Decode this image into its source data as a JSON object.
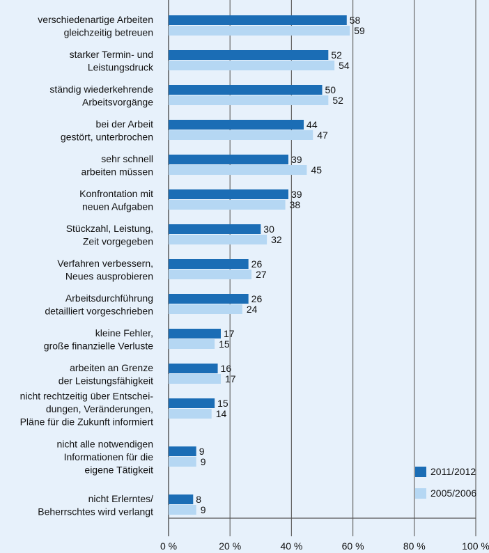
{
  "chart_data": {
    "type": "bar",
    "orientation": "horizontal",
    "categories": [
      [
        "verschiedenartige Arbeiten",
        "gleichzeitig betreuen"
      ],
      [
        "starker Termin- und",
        "Leistungsdruck"
      ],
      [
        "ständig wiederkehrende",
        "Arbeitsvorgänge"
      ],
      [
        "bei der Arbeit",
        "gestört, unterbrochen"
      ],
      [
        "sehr schnell",
        "arbeiten müssen"
      ],
      [
        "Konfrontation mit",
        "neuen Aufgaben"
      ],
      [
        "Stückzahl, Leistung,",
        "Zeit vorgegeben"
      ],
      [
        "Verfahren verbessern,",
        "Neues ausprobieren"
      ],
      [
        "Arbeitsdurchführung",
        "detailliert vorgeschrieben"
      ],
      [
        "kleine Fehler,",
        "große finanzielle Verluste"
      ],
      [
        "arbeiten an Grenze",
        "der Leistungsfähigkeit"
      ],
      [
        "nicht rechtzeitig über Entschei-",
        "dungen, Veränderungen,",
        "Pläne für die Zukunft informiert"
      ],
      [
        "nicht alle notwendigen",
        "Informationen für die",
        "eigene Tätigkeit"
      ],
      [
        "nicht Erlerntes/",
        "Beherrschtes wird verlangt"
      ]
    ],
    "series": [
      {
        "name": "2011/2012",
        "color": "#1b6db5",
        "values": [
          58,
          52,
          50,
          44,
          39,
          39,
          30,
          26,
          26,
          17,
          16,
          15,
          9,
          8
        ]
      },
      {
        "name": "2005/2006",
        "color": "#b5d7f3",
        "values": [
          59,
          54,
          52,
          47,
          45,
          38,
          32,
          27,
          24,
          15,
          17,
          14,
          9,
          9
        ]
      }
    ],
    "xlim": [
      0,
      100
    ],
    "xticks": [
      "0 %",
      "20 %",
      "40 %",
      "60 %",
      "80 %",
      "100 %"
    ],
    "legend": "bottom-right",
    "grid": true
  }
}
